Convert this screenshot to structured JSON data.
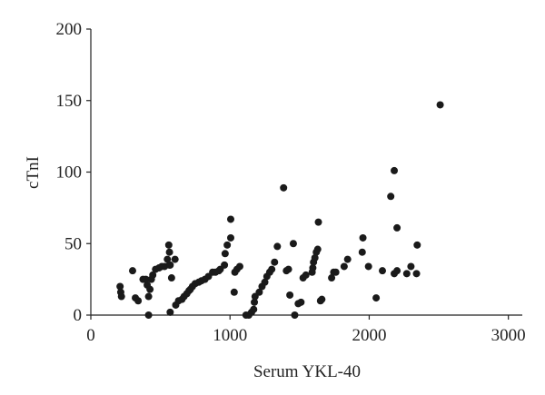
{
  "chart_data": {
    "type": "scatter",
    "x_label": "Serum YKL-40",
    "y_label": "cTnI",
    "color": "#1a1a1a",
    "xlim": [
      0,
      3100
    ],
    "ylim": [
      0,
      200
    ],
    "xticks": [
      0,
      1000,
      2000,
      3000
    ],
    "yticks": [
      0,
      50,
      100,
      150,
      200
    ],
    "x": [
      210,
      215,
      220,
      300,
      320,
      340,
      375,
      395,
      405,
      415,
      415,
      425,
      435,
      445,
      465,
      490,
      510,
      530,
      550,
      565,
      570,
      565,
      560,
      580,
      570,
      605,
      610,
      630,
      655,
      670,
      690,
      705,
      715,
      730,
      750,
      775,
      795,
      820,
      845,
      875,
      895,
      920,
      930,
      960,
      965,
      980,
      1005,
      1005,
      1030,
      1035,
      1050,
      1070,
      1115,
      1135,
      1155,
      1170,
      1175,
      1180,
      1210,
      1230,
      1250,
      1265,
      1285,
      1300,
      1320,
      1340,
      1385,
      1405,
      1420,
      1430,
      1455,
      1465,
      1490,
      1510,
      1525,
      1545,
      1590,
      1595,
      1600,
      1610,
      1620,
      1630,
      1635,
      1650,
      1660,
      1730,
      1745,
      1760,
      1820,
      1845,
      1950,
      1955,
      1995,
      2050,
      2095,
      2155,
      2180,
      2180,
      2200,
      2200,
      2270,
      2300,
      2340,
      2345,
      2510
    ],
    "values": [
      20,
      16,
      13,
      31,
      12,
      10,
      25,
      25,
      21,
      0,
      13,
      18,
      25,
      28,
      32,
      33,
      34,
      34,
      39,
      35,
      35,
      44,
      49,
      26,
      2,
      39,
      7,
      10,
      11,
      13,
      15,
      17,
      18,
      20,
      22,
      23,
      24,
      25,
      27,
      30,
      30,
      31,
      32,
      35,
      43,
      49,
      54,
      67,
      16,
      30,
      32,
      34,
      0,
      0,
      2,
      4,
      9,
      13,
      16,
      20,
      23,
      27,
      30,
      32,
      37,
      48,
      89,
      31,
      32,
      14,
      50,
      0,
      8,
      9,
      26,
      28,
      30,
      33,
      37,
      40,
      44,
      46,
      65,
      10,
      11,
      26,
      30,
      30,
      34,
      39,
      44,
      54,
      34,
      12,
      31,
      83,
      101,
      29,
      31,
      61,
      29,
      34,
      29,
      49,
      147
    ]
  }
}
